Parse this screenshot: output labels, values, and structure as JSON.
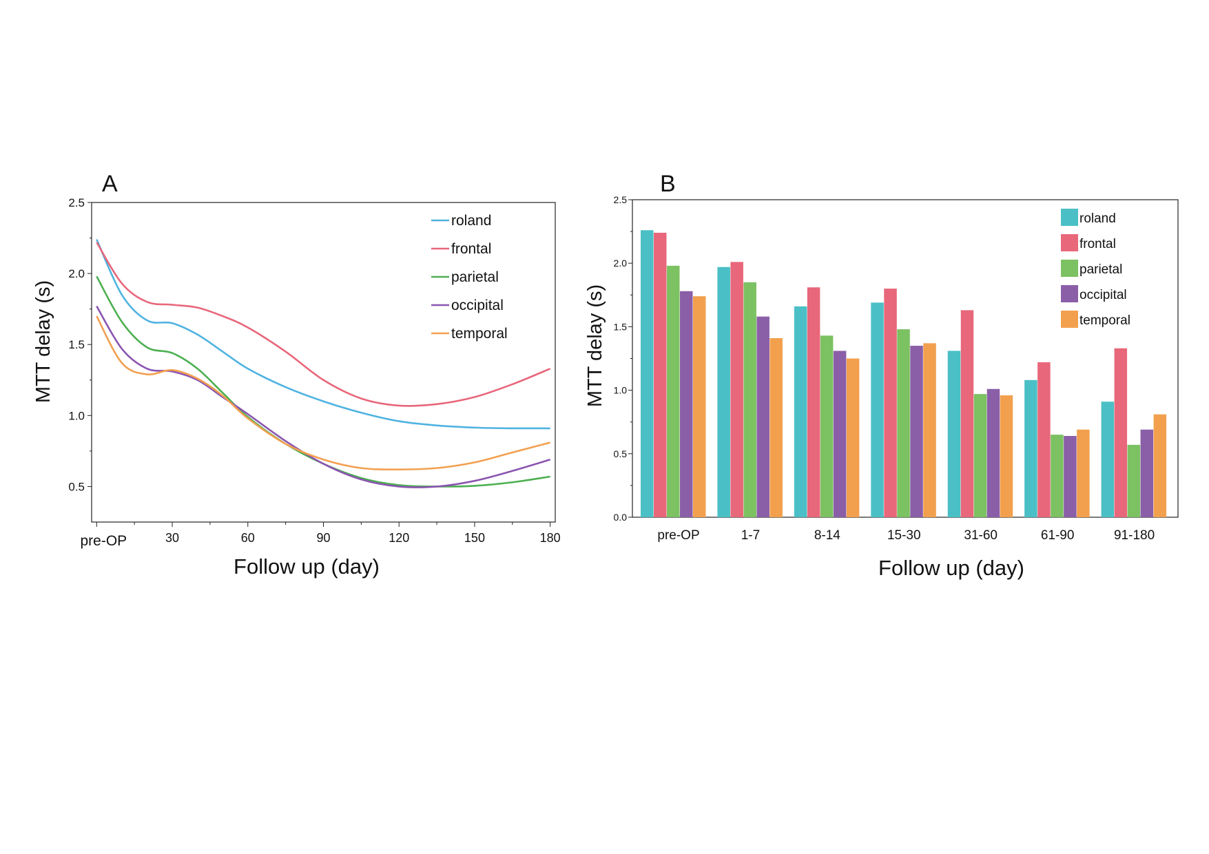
{
  "chart_data": [
    {
      "panel": "A",
      "type": "line",
      "xlabel": "Follow up (day)",
      "ylabel": "MTT delay (s)",
      "xlim": [
        -2,
        182
      ],
      "ylim": [
        0.25,
        2.5
      ],
      "xticks": [
        0,
        30,
        60,
        90,
        120,
        150,
        180
      ],
      "xtick_labels": [
        "pre-OP",
        "30",
        "60",
        "90",
        "120",
        "150",
        "180"
      ],
      "yticks": [
        0.5,
        1.0,
        1.5,
        2.0,
        2.5
      ],
      "ytick_labels": [
        "0.5",
        "1.0",
        "1.5",
        "2.0",
        "2.5"
      ],
      "legend_position": "top-right",
      "x": [
        0,
        10,
        20,
        30,
        40,
        50,
        60,
        75,
        90,
        105,
        120,
        135,
        150,
        165,
        180
      ],
      "series": [
        {
          "name": "roland",
          "color": "#4fb3e0",
          "values": [
            2.24,
            1.85,
            1.67,
            1.65,
            1.57,
            1.45,
            1.33,
            1.2,
            1.1,
            1.02,
            0.96,
            0.93,
            0.915,
            0.91,
            0.91
          ]
        },
        {
          "name": "frontal",
          "color": "#e8667a",
          "values": [
            2.22,
            1.93,
            1.8,
            1.78,
            1.76,
            1.7,
            1.62,
            1.45,
            1.25,
            1.12,
            1.07,
            1.08,
            1.13,
            1.22,
            1.33
          ]
        },
        {
          "name": "parietal",
          "color": "#4caf50",
          "values": [
            1.98,
            1.66,
            1.48,
            1.44,
            1.33,
            1.16,
            0.99,
            0.8,
            0.66,
            0.56,
            0.51,
            0.5,
            0.505,
            0.53,
            0.57
          ]
        },
        {
          "name": "occipital",
          "color": "#8a55b0",
          "values": [
            1.77,
            1.47,
            1.33,
            1.31,
            1.25,
            1.13,
            1.01,
            0.82,
            0.66,
            0.55,
            0.5,
            0.5,
            0.54,
            0.61,
            0.69
          ]
        },
        {
          "name": "temporal",
          "color": "#f2a050",
          "values": [
            1.7,
            1.37,
            1.29,
            1.32,
            1.26,
            1.14,
            0.98,
            0.8,
            0.69,
            0.63,
            0.62,
            0.63,
            0.67,
            0.74,
            0.81
          ]
        }
      ]
    },
    {
      "panel": "B",
      "type": "bar",
      "xlabel": "Follow up (day)",
      "ylabel": "MTT delay (s)",
      "ylim": [
        0,
        2.5
      ],
      "yticks": [
        0.0,
        0.5,
        1.0,
        1.5,
        2.0,
        2.5
      ],
      "ytick_labels": [
        "0.0",
        "0.5",
        "1.0",
        "1.5",
        "2.0",
        "2.5"
      ],
      "legend_position": "top-right",
      "categories": [
        "pre-OP",
        "1-7",
        "8-14",
        "15-30",
        "31-60",
        "61-90",
        "91-180"
      ],
      "series": [
        {
          "name": "roland",
          "color": "#4bbfc6",
          "values": [
            2.26,
            1.97,
            1.66,
            1.69,
            1.31,
            1.08,
            0.91
          ]
        },
        {
          "name": "frontal",
          "color": "#e8677a",
          "values": [
            2.24,
            2.01,
            1.81,
            1.8,
            1.63,
            1.22,
            1.33
          ]
        },
        {
          "name": "parietal",
          "color": "#7cc162",
          "values": [
            1.98,
            1.85,
            1.43,
            1.48,
            0.97,
            0.65,
            0.57
          ]
        },
        {
          "name": "occipital",
          "color": "#8a5fa8",
          "values": [
            1.78,
            1.58,
            1.31,
            1.35,
            1.01,
            0.64,
            0.69
          ]
        },
        {
          "name": "temporal",
          "color": "#f2a04e",
          "values": [
            1.74,
            1.41,
            1.25,
            1.37,
            0.96,
            0.69,
            0.81
          ]
        }
      ]
    }
  ]
}
